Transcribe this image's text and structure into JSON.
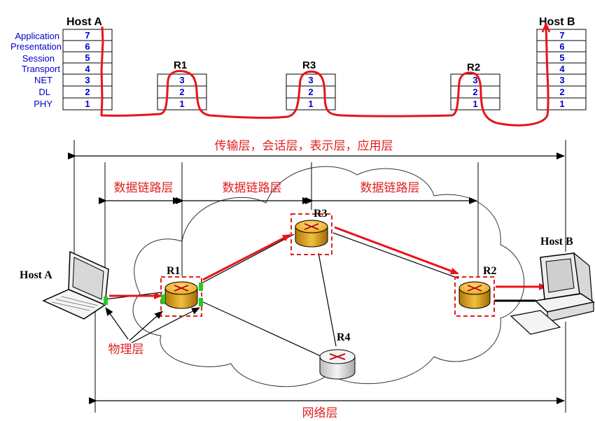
{
  "stack_diagram": {
    "host_a_title": "Host A",
    "host_b_title": "Host B",
    "routers": [
      "R1",
      "R3",
      "R2"
    ],
    "layer_names": [
      "Application",
      "Presentation",
      "Session",
      "Transport",
      "NET",
      "DL",
      "PHY"
    ],
    "host_layers": [
      "7",
      "6",
      "5",
      "4",
      "3",
      "2",
      "1"
    ],
    "router_layers": [
      "3",
      "2",
      "1"
    ]
  },
  "network_diagram": {
    "host_a_label": "Host A",
    "host_b_label": "Host B",
    "routers": {
      "r1": "R1",
      "r2": "R2",
      "r3": "R3",
      "r4": "R4"
    },
    "labels": {
      "transport_layers": "传输层，会话层，表示层，应用层",
      "datalink": "数据链路层",
      "physical": "物理层",
      "network": "网络层"
    }
  },
  "colors": {
    "path": "#e8141b",
    "layer_text": "#0000cc",
    "router_body": "#e8a515",
    "highlight_box": "#e02020",
    "port": "#22cc22"
  }
}
